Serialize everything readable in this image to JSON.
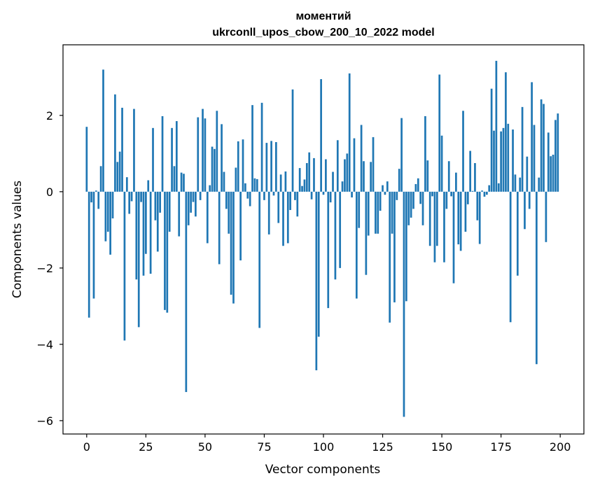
{
  "chart_data": {
    "type": "bar",
    "title": "моментий",
    "subtitle": "ukrconll_upos_cbow_200_10_2022 model",
    "xlabel": "Vector components",
    "ylabel": "Components values",
    "xlim": [
      -10,
      210
    ],
    "ylim": [
      -6.35,
      3.85
    ],
    "xticks": [
      0,
      25,
      50,
      75,
      100,
      125,
      150,
      175,
      200
    ],
    "yticks": [
      -6,
      -4,
      -2,
      0,
      2
    ],
    "grid": false,
    "bar_color": "#1f77b4",
    "x": [
      0,
      1,
      2,
      3,
      4,
      5,
      6,
      7,
      8,
      9,
      10,
      11,
      12,
      13,
      14,
      15,
      16,
      17,
      18,
      19,
      20,
      21,
      22,
      23,
      24,
      25,
      26,
      27,
      28,
      29,
      30,
      31,
      32,
      33,
      34,
      35,
      36,
      37,
      38,
      39,
      40,
      41,
      42,
      43,
      44,
      45,
      46,
      47,
      48,
      49,
      50,
      51,
      52,
      53,
      54,
      55,
      56,
      57,
      58,
      59,
      60,
      61,
      62,
      63,
      64,
      65,
      66,
      67,
      68,
      69,
      70,
      71,
      72,
      73,
      74,
      75,
      76,
      77,
      78,
      79,
      80,
      81,
      82,
      83,
      84,
      85,
      86,
      87,
      88,
      89,
      90,
      91,
      92,
      93,
      94,
      95,
      96,
      97,
      98,
      99,
      100,
      101,
      102,
      103,
      104,
      105,
      106,
      107,
      108,
      109,
      110,
      111,
      112,
      113,
      114,
      115,
      116,
      117,
      118,
      119,
      120,
      121,
      122,
      123,
      124,
      125,
      126,
      127,
      128,
      129,
      130,
      131,
      132,
      133,
      134,
      135,
      136,
      137,
      138,
      139,
      140,
      141,
      142,
      143,
      144,
      145,
      146,
      147,
      148,
      149,
      150,
      151,
      152,
      153,
      154,
      155,
      156,
      157,
      158,
      159,
      160,
      161,
      162,
      163,
      164,
      165,
      166,
      167,
      168,
      169,
      170,
      171,
      172,
      173,
      174,
      175,
      176,
      177,
      178,
      179,
      180,
      181,
      182,
      183,
      184,
      185,
      186,
      187,
      188,
      189,
      190,
      191,
      192,
      193,
      194,
      195,
      196,
      197,
      198,
      199
    ],
    "values": [
      1.7,
      -3.3,
      -0.28,
      -2.8,
      0.03,
      -0.45,
      0.67,
      3.2,
      -1.3,
      -1.05,
      -1.65,
      -0.7,
      2.55,
      0.78,
      1.05,
      2.2,
      -3.9,
      0.38,
      -0.58,
      -0.25,
      2.17,
      -2.3,
      -3.55,
      -0.27,
      -2.2,
      -1.63,
      0.3,
      -2.15,
      1.67,
      -0.75,
      -1.57,
      -0.55,
      1.98,
      -3.1,
      -3.17,
      -1.05,
      1.67,
      0.67,
      1.85,
      -1.17,
      0.5,
      0.47,
      -5.25,
      -0.88,
      -0.55,
      -0.27,
      -0.65,
      1.95,
      -0.22,
      2.17,
      1.92,
      -1.35,
      0.17,
      1.18,
      1.12,
      2.12,
      -1.9,
      1.77,
      0.52,
      -0.45,
      -1.1,
      -2.7,
      -2.93,
      0.63,
      1.32,
      -1.8,
      1.37,
      0.22,
      -0.18,
      -0.38,
      2.27,
      0.35,
      0.33,
      -3.57,
      2.33,
      -0.22,
      1.28,
      -1.12,
      1.33,
      -0.1,
      1.3,
      -0.82,
      0.45,
      -1.42,
      0.53,
      -1.35,
      -0.48,
      2.68,
      -0.22,
      -0.65,
      0.62,
      0.15,
      0.32,
      0.75,
      1.03,
      -0.2,
      0.88,
      -4.68,
      -3.8,
      2.95,
      -0.08,
      0.85,
      -3.05,
      -0.28,
      0.52,
      -2.3,
      1.35,
      -2.0,
      0.27,
      0.85,
      1.0,
      3.1,
      -0.15,
      1.4,
      -2.8,
      -0.95,
      1.75,
      0.8,
      -2.18,
      -1.15,
      0.78,
      1.43,
      -1.1,
      -1.1,
      -0.5,
      0.17,
      -0.08,
      0.27,
      -3.43,
      -1.1,
      -2.9,
      -0.22,
      0.6,
      1.93,
      -5.9,
      -2.87,
      -0.88,
      -0.68,
      -0.45,
      0.2,
      0.35,
      -0.32,
      -0.88,
      1.98,
      0.82,
      -1.42,
      -0.12,
      -1.85,
      -1.42,
      3.07,
      1.47,
      -1.85,
      -0.45,
      0.8,
      -0.12,
      -2.4,
      0.5,
      -1.38,
      -1.55,
      2.12,
      -1.05,
      -0.33,
      1.07,
      0.02,
      0.75,
      -0.75,
      -1.37,
      0.03,
      -0.13,
      -0.08,
      0.17,
      2.7,
      1.6,
      3.43,
      0.22,
      1.58,
      1.67,
      3.13,
      1.78,
      -3.42,
      1.63,
      0.45,
      -2.2,
      0.37,
      2.22,
      -0.98,
      0.92,
      -0.45,
      2.87,
      1.75,
      -4.52,
      0.37,
      2.42,
      2.3,
      -1.32,
      1.55,
      0.93,
      0.97,
      1.88,
      2.05
    ]
  }
}
